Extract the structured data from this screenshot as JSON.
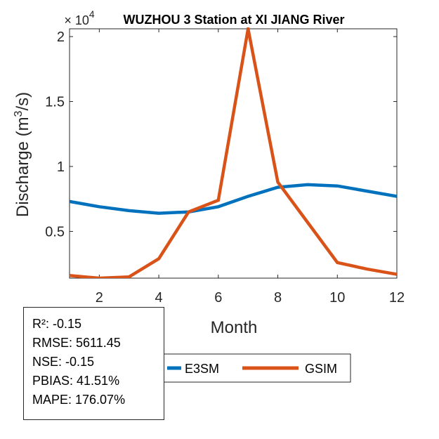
{
  "chart_data": {
    "type": "line",
    "title": "WUZHOU 3  Station at  XI JIANG  River",
    "xlabel": "Month",
    "ylabel_main": "Discharge (m",
    "ylabel_sup": "3",
    "ylabel_end": "/s)",
    "y_multiplier_prefix": "× 10",
    "y_multiplier_exp": "4",
    "xlim": [
      1,
      12
    ],
    "ylim": [
      0.14,
      2.06
    ],
    "xticks": [
      2,
      4,
      6,
      8,
      10,
      12
    ],
    "yticks": [
      0.5,
      1,
      1.5,
      2
    ],
    "ytick_labels": [
      "0.5",
      "1",
      "1.5",
      "2"
    ],
    "x": [
      1,
      2,
      3,
      4,
      5,
      6,
      7,
      8,
      9,
      10,
      11,
      12
    ],
    "series": [
      {
        "name": "E3SM",
        "color": "#0072BD",
        "values": [
          0.73,
          0.69,
          0.66,
          0.64,
          0.65,
          0.69,
          0.77,
          0.84,
          0.86,
          0.85,
          0.81,
          0.77
        ]
      },
      {
        "name": "GSIM",
        "color": "#D95319",
        "values": [
          0.16,
          0.14,
          0.15,
          0.29,
          0.65,
          0.74,
          2.06,
          0.88,
          0.57,
          0.26,
          0.21,
          0.17
        ]
      }
    ]
  },
  "stats": {
    "r2": "R²: -0.15",
    "rmse": "RMSE: 5611.45",
    "nse": "NSE: -0.15",
    "pbias": "PBIAS: 41.51%",
    "mape": "MAPE: 176.07%"
  }
}
